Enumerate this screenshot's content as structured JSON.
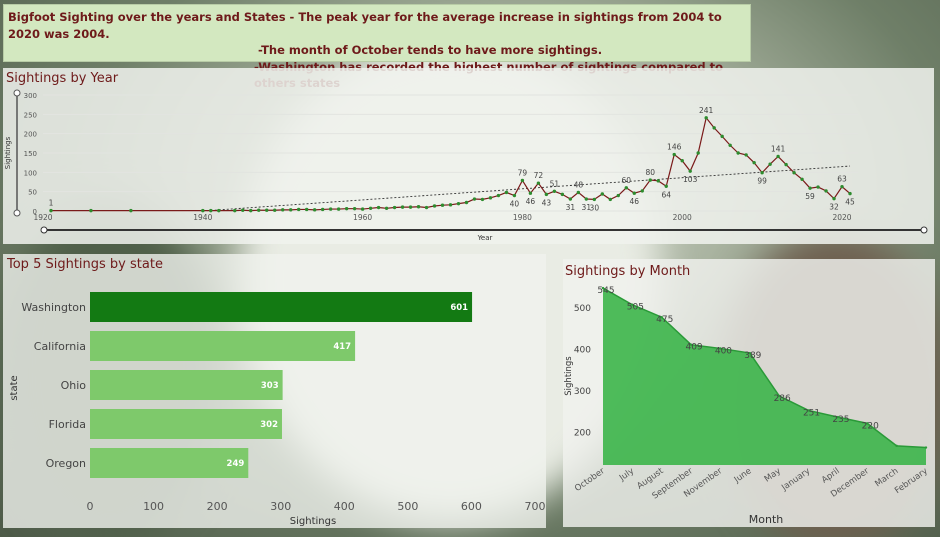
{
  "header": {
    "line1": "Bigfoot Sighting over the years and States - The peak year for the average increase in sightings from 2004 to 2020 was 2004.",
    "line2": "-The month of October tends to have more sightings.",
    "line3": "-Washington has recorded the highest number of sightings compared to others states"
  },
  "year_panel": {
    "title": "Sightings by Year"
  },
  "state_panel": {
    "title": "Top 5 Sightings by state"
  },
  "month_panel": {
    "title": "Sightings by Month"
  },
  "chart_data": [
    {
      "type": "line",
      "title": "Sightings by Year",
      "xlabel": "Year",
      "ylabel": "Sightings",
      "xlim": [
        1920,
        2022
      ],
      "ylim": [
        0,
        300
      ],
      "x_ticks": [
        1920,
        1940,
        1960,
        1980,
        2000,
        2020
      ],
      "y_ticks": [
        0,
        50,
        100,
        150,
        200,
        250,
        300
      ],
      "trendline": true,
      "color": "#7a1a1a",
      "marker_color": "#2e8b2e",
      "x": [
        1921,
        1926,
        1931,
        1940,
        1941,
        1942,
        1944,
        1945,
        1946,
        1947,
        1948,
        1949,
        1950,
        1951,
        1952,
        1953,
        1954,
        1955,
        1956,
        1957,
        1958,
        1959,
        1960,
        1961,
        1962,
        1963,
        1964,
        1965,
        1966,
        1967,
        1968,
        1969,
        1970,
        1971,
        1972,
        1973,
        1974,
        1975,
        1976,
        1977,
        1978,
        1979,
        1980,
        1981,
        1982,
        1983,
        1984,
        1985,
        1986,
        1987,
        1988,
        1989,
        1990,
        1991,
        1992,
        1993,
        1994,
        1995,
        1996,
        1997,
        1998,
        1999,
        2000,
        2001,
        2002,
        2003,
        2004,
        2005,
        2006,
        2007,
        2008,
        2009,
        2010,
        2011,
        2012,
        2013,
        2014,
        2015,
        2016,
        2017,
        2018,
        2019,
        2020,
        2021
      ],
      "y": [
        1,
        1,
        1,
        1,
        1,
        1,
        1,
        2,
        1,
        2,
        2,
        2,
        3,
        3,
        4,
        4,
        3,
        4,
        5,
        5,
        6,
        6,
        5,
        7,
        9,
        7,
        9,
        10,
        10,
        11,
        9,
        13,
        15,
        16,
        19,
        22,
        31,
        30,
        34,
        40,
        48,
        40,
        79,
        46,
        72,
        43,
        51,
        43,
        31,
        48,
        31,
        30,
        44,
        30,
        40,
        60,
        46,
        52,
        80,
        78,
        64,
        146,
        130,
        103,
        150,
        241,
        215,
        193,
        170,
        150,
        145,
        125,
        99,
        121,
        141,
        120,
        99,
        82,
        59,
        62,
        52,
        32,
        63,
        45
      ],
      "labeled_points": [
        {
          "x": 1921,
          "y": 1
        },
        {
          "x": 1979,
          "y": 40
        },
        {
          "x": 1980,
          "y": 79
        },
        {
          "x": 1981,
          "y": 46
        },
        {
          "x": 1982,
          "y": 72
        },
        {
          "x": 1983,
          "y": 43
        },
        {
          "x": 1984,
          "y": 51
        },
        {
          "x": 1986,
          "y": 31
        },
        {
          "x": 1987,
          "y": 48
        },
        {
          "x": 1988,
          "y": 31
        },
        {
          "x": 1989,
          "y": 30
        },
        {
          "x": 1993,
          "y": 60
        },
        {
          "x": 1994,
          "y": 46
        },
        {
          "x": 1996,
          "y": 80
        },
        {
          "x": 1998,
          "y": 64
        },
        {
          "x": 1999,
          "y": 146
        },
        {
          "x": 2001,
          "y": 103
        },
        {
          "x": 2003,
          "y": 241
        },
        {
          "x": 2010,
          "y": 99
        },
        {
          "x": 2012,
          "y": 141
        },
        {
          "x": 2016,
          "y": 59
        },
        {
          "x": 2019,
          "y": 32
        },
        {
          "x": 2020,
          "y": 63
        },
        {
          "x": 2021,
          "y": 45
        }
      ]
    },
    {
      "type": "bar",
      "orientation": "horizontal",
      "title": "Top 5 Sightings by state",
      "xlabel": "Sightings",
      "ylabel": "state",
      "xlim": [
        0,
        700
      ],
      "x_ticks": [
        0,
        100,
        200,
        300,
        400,
        500,
        600,
        700
      ],
      "categories": [
        "Washington",
        "California",
        "Ohio",
        "Florida",
        "Oregon"
      ],
      "values": [
        601,
        417,
        303,
        302,
        249
      ],
      "colors": [
        "#137a13",
        "#7ec96b",
        "#7ec96b",
        "#7ec96b",
        "#7ec96b"
      ]
    },
    {
      "type": "area",
      "title": "Sightings by Month",
      "xlabel": "Month",
      "ylabel": "Sightings",
      "ylim": [
        120,
        550
      ],
      "y_ticks": [
        200,
        300,
        400,
        500
      ],
      "categories": [
        "October",
        "July",
        "August",
        "September",
        "November",
        "June",
        "May",
        "January",
        "April",
        "December",
        "March",
        "February"
      ],
      "values": [
        545,
        505,
        475,
        409,
        400,
        389,
        286,
        251,
        235,
        220,
        166,
        162
      ],
      "labels": [
        "545",
        "505",
        "475",
        "409",
        "400",
        "389",
        "286",
        "251",
        "235",
        "220",
        "",
        ""
      ],
      "color": "#3cb54a"
    }
  ]
}
